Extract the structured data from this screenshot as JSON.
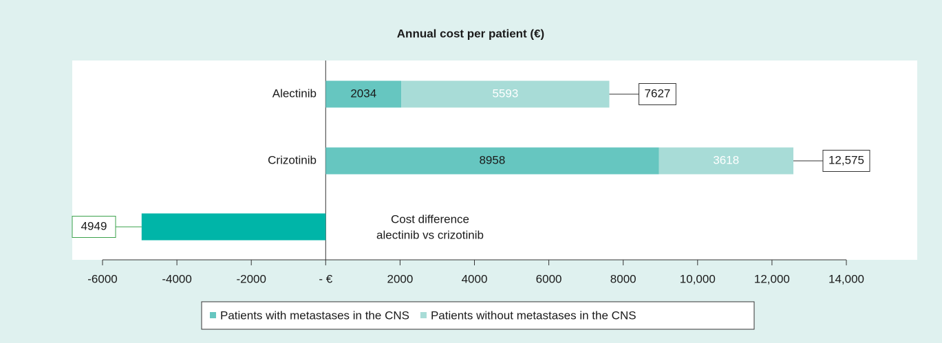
{
  "chart_data": {
    "type": "bar",
    "orientation": "horizontal",
    "stacked": true,
    "title": "Annual cost per patient (€)",
    "categories": [
      "Alectinib",
      "Crizotinib"
    ],
    "series": [
      {
        "name": "Patients with metastases in the CNS",
        "color": "#66c6c0",
        "label_color": "#1a1a1a",
        "values": [
          2034,
          8958
        ]
      },
      {
        "name": "Patients without metastases in the CNS",
        "color": "#a8dcd7",
        "label_color": "#ffffff",
        "values": [
          5593,
          3618
        ]
      }
    ],
    "totals": [
      7627,
      12575
    ],
    "total_labels": [
      "7627",
      "12,575"
    ],
    "difference": {
      "label": [
        "Cost difference",
        "alectinib vs crizotinib"
      ],
      "value": -4949,
      "value_label": "4949",
      "color": "#00b5a8",
      "box_color": "#3aa14a"
    },
    "xlim": [
      -6000,
      14000
    ],
    "xticks": [
      -6000,
      -4000,
      -2000,
      {
        "value": 0,
        "label": "- €"
      },
      2000,
      4000,
      6000,
      8000,
      {
        "value": 10000,
        "label": "10,000"
      },
      {
        "value": 12000,
        "label": "12,000"
      },
      {
        "value": 14000,
        "label": "14,000"
      }
    ]
  }
}
